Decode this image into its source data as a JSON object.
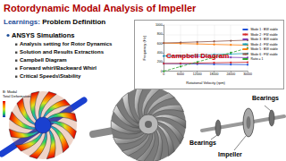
{
  "header": {
    "title": "Rotordynamic Modal Analysis of Impeller",
    "learnings_label": "Learnings:",
    "learnings_text": "Problem Definition"
  },
  "bullets": {
    "main": "ANSYS Simulations",
    "items": [
      "Analysis setting for Rotor Dynamics",
      "Solution and Results Extractions",
      "Campbell Diagram",
      "Forward whirl/Backward Whirl",
      "Critical Speeds\\Stability"
    ]
  },
  "chart_data": {
    "type": "line",
    "title": "Campbell Diagram",
    "x_label": "Rotational Velocity (rpm)",
    "y_label": "Frequency (Hz)",
    "x": [
      0,
      6000,
      12000,
      18000,
      24000,
      30000
    ],
    "xlim": [
      0,
      30000
    ],
    "xticks": [
      0,
      6000,
      12000,
      18000,
      24000,
      30000
    ],
    "ylim": [
      0,
      1000
    ],
    "yticks": [
      0,
      200,
      400,
      600,
      800,
      1000
    ],
    "grid": true,
    "legend": "right",
    "marker": "circle",
    "series": [
      {
        "name": "Mode 1 : BW stable",
        "color": "#1f4fd8",
        "values": [
          165,
          160,
          155,
          150,
          146,
          142
        ]
      },
      {
        "name": "Mode 2 : FW stable",
        "color": "#d62728",
        "values": [
          165,
          170,
          176,
          182,
          188,
          194
        ]
      },
      {
        "name": "Mode 3 : BW stable",
        "color": "#7b3fb5",
        "values": [
          330,
          322,
          315,
          308,
          300,
          294
        ]
      },
      {
        "name": "Mode 4 : FW stable",
        "color": "#17a2b8",
        "values": [
          330,
          340,
          350,
          360,
          372,
          384
        ]
      },
      {
        "name": "Mode 5 : BW stable",
        "color": "#ff7f0e",
        "values": [
          610,
          600,
          590,
          580,
          571,
          562
        ]
      },
      {
        "name": "Mode 6 : FW stable",
        "color": "#8c564b",
        "values": [
          610,
          622,
          634,
          646,
          660,
          672
        ]
      },
      {
        "name": "Ratio = 1",
        "color": "#2ca02c",
        "line_style": "dashed",
        "values": [
          0,
          100,
          200,
          300,
          400,
          500
        ]
      }
    ]
  },
  "mode_shape": {
    "caption": [
      "B: Modal",
      "Total Deformation"
    ]
  },
  "rotor": {
    "labels": {
      "bearing_top": "Bearings",
      "bearing_bottom": "Bearings",
      "impeller": "Impeller"
    }
  }
}
